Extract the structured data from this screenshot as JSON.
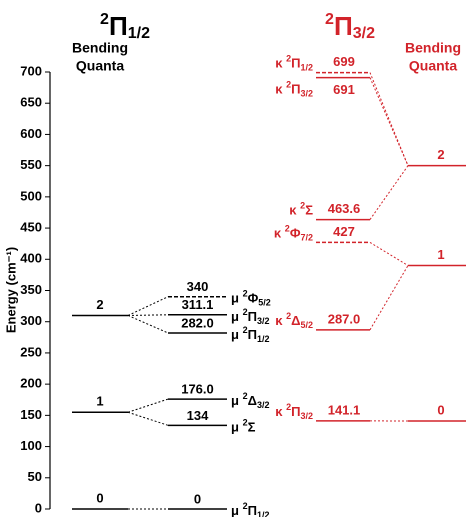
{
  "chart_data": {
    "type": "energy-level",
    "y_label": "Energy (cm⁻¹)",
    "ylim": [
      0,
      700
    ],
    "yticks": [
      0,
      50,
      100,
      150,
      200,
      250,
      300,
      350,
      400,
      450,
      500,
      550,
      600,
      650,
      700
    ],
    "panels": [
      {
        "title": {
          "sup": "2",
          "sym": "Π",
          "sub": "1/2"
        },
        "color": "#000000",
        "quanta_title": [
          "Bending",
          "Quanta"
        ],
        "quanta": {
          "labels": [
            "0",
            "1",
            "2"
          ],
          "values": [
            0,
            155,
            310
          ]
        },
        "levels": {
          "values": [
            0,
            134,
            176,
            282,
            311.1,
            340
          ],
          "value_labels": [
            "0",
            "134",
            "176.0",
            "282.0",
            "311.1",
            "340"
          ],
          "quantum": [
            0,
            1,
            1,
            2,
            2,
            2
          ],
          "dashed": [
            false,
            false,
            false,
            false,
            false,
            true
          ],
          "prefix": [
            "μ",
            "μ",
            "μ",
            "μ",
            "μ",
            "μ"
          ],
          "sup": [
            "2",
            "2",
            "2",
            "2",
            "2",
            "2"
          ],
          "sym": [
            "Π",
            "Σ",
            "Δ",
            "Π",
            "Π",
            "Φ"
          ],
          "sub": [
            "1/2",
            null,
            "3/2",
            "1/2",
            "3/2",
            "5/2"
          ]
        }
      },
      {
        "title": {
          "sup": "2",
          "sym": "Π",
          "sub": "3/2"
        },
        "color": "#d2232a",
        "quanta_title": [
          "Bending",
          "Quanta"
        ],
        "quanta": {
          "labels": [
            "0",
            "1",
            "2"
          ],
          "values": [
            141,
            390,
            550
          ]
        },
        "levels": {
          "values": [
            141.1,
            287,
            427,
            463.6,
            691,
            699
          ],
          "value_labels": [
            "141.1",
            "287.0",
            "427",
            "463.6",
            "691",
            "699"
          ],
          "quantum": [
            0,
            1,
            1,
            2,
            2,
            2
          ],
          "dashed": [
            false,
            false,
            true,
            false,
            false,
            true
          ],
          "prefix": [
            "κ",
            "κ",
            "κ",
            "κ",
            "κ",
            "κ"
          ],
          "sup": [
            "2",
            "2",
            "2",
            "2",
            "2",
            "2"
          ],
          "sym": [
            "Π",
            "Δ",
            "Φ",
            "Σ",
            "Π",
            "Π"
          ],
          "sub": [
            "3/2",
            "5/2",
            "7/2",
            null,
            "3/2",
            "1/2"
          ]
        }
      }
    ]
  }
}
